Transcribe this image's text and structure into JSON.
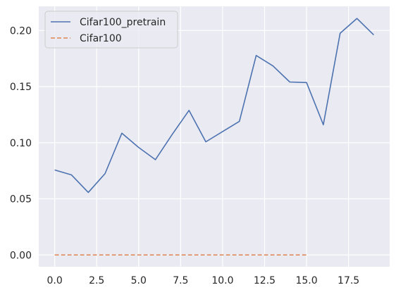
{
  "chart_data": {
    "type": "line",
    "title": "",
    "xlabel": "",
    "ylabel": "",
    "xlim": [
      -0.95,
      19.95
    ],
    "ylim": [
      -0.0105,
      0.2215
    ],
    "xticks": [
      0.0,
      2.5,
      5.0,
      7.5,
      10.0,
      12.5,
      15.0,
      17.5
    ],
    "xtick_labels": [
      "0.0",
      "2.5",
      "5.0",
      "7.5",
      "10.0",
      "12.5",
      "15.0",
      "17.5"
    ],
    "yticks": [
      0.0,
      0.05,
      0.1,
      0.15,
      0.2
    ],
    "ytick_labels": [
      "0.00",
      "0.05",
      "0.10",
      "0.15",
      "0.20"
    ],
    "grid": true,
    "legend_position": "top-left",
    "series": [
      {
        "name": "Cifar100_pretrain",
        "color": "#4c72b0",
        "style": "solid",
        "x": [
          0,
          1,
          2,
          3,
          4,
          5,
          6,
          7,
          8,
          9,
          10,
          11,
          12,
          13,
          14,
          15,
          16,
          17,
          18,
          19
        ],
        "values": [
          0.0757,
          0.0713,
          0.0557,
          0.0725,
          0.1085,
          0.0958,
          0.0849,
          0.1074,
          0.1288,
          0.1008,
          0.1099,
          0.119,
          0.1777,
          0.1684,
          0.1541,
          0.1536,
          0.116,
          0.1975,
          0.2107,
          0.1961
        ]
      },
      {
        "name": "Cifar100",
        "color": "#dd8452",
        "style": "dashed",
        "x": [
          0,
          1,
          2,
          3,
          4,
          5,
          6,
          7,
          8,
          9,
          10,
          11,
          12,
          13,
          14,
          15
        ],
        "values": [
          0,
          0,
          0,
          0,
          0,
          0,
          0,
          0,
          0,
          0,
          0,
          0,
          0,
          0,
          0,
          0
        ]
      }
    ]
  }
}
